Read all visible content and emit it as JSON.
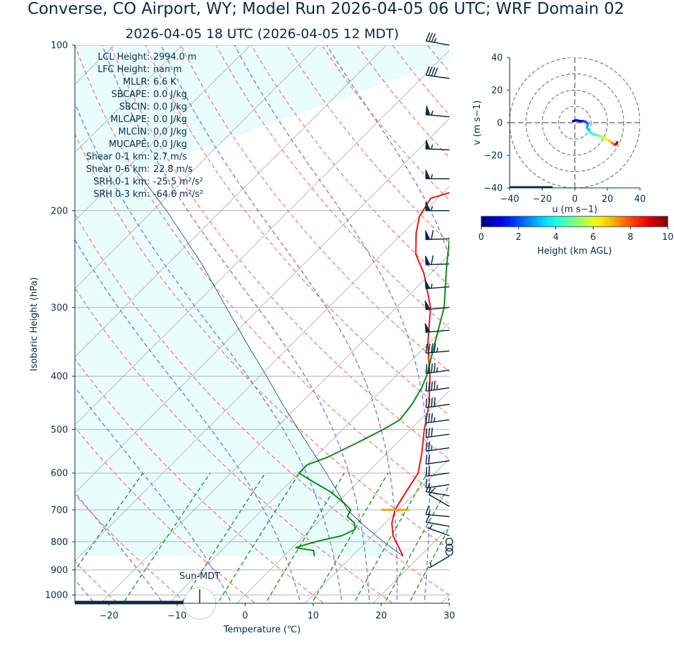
{
  "header": {
    "title": "Converse, CO Airport, WY; Model Run 2026-04-05 06 UTC; WRF Domain 02",
    "subtitle": "2026-04-05 18 UTC  (2026-04-05 12 MDT)"
  },
  "indices": [
    {
      "label": "LCL Height:",
      "value": "2994.0 m"
    },
    {
      "label": "LFC Height:",
      "value": "nan m"
    },
    {
      "label": "MLLR:",
      "value": "6.6 K"
    },
    {
      "label": "SBCAPE:",
      "value": "0.0 J/kg"
    },
    {
      "label": "SBCIN:",
      "value": "0.0 J/kg"
    },
    {
      "label": "MLCAPE:",
      "value": "0.0 J/kg"
    },
    {
      "label": "MLCIN:",
      "value": "0.0 J/kg"
    },
    {
      "label": "MUCAPE:",
      "value": "0.0 J/kg"
    },
    {
      "label": "Shear 0-1 km:",
      "value": "2.7 m/s"
    },
    {
      "label": "Shear 0-6 km:",
      "value": "22.8 m/s"
    },
    {
      "label": "SRH 0-1 km:",
      "value": "-25.5 m²/s²"
    },
    {
      "label": "SRH 0-3 km:",
      "value": "-64.6 m²/s²"
    }
  ],
  "sun_label": "Sun-MDT",
  "colors": {
    "text": "#0b2a4a",
    "temperature": "#e8140c",
    "dewpoint": "#0a8a0a",
    "parcel": "#1b3a5c",
    "cape_fill": "#e9fdfd",
    "lcl_marker": "#f4a10f"
  },
  "chart_data": [
    {
      "type": "line",
      "kind": "skew-t",
      "xlabel": "Temperature (℃)",
      "ylabel": "Isobaric Height (hPa)",
      "xlim": [
        -25,
        30
      ],
      "ylim": [
        1035,
        100
      ],
      "log_y": true,
      "grid": true,
      "x_ticks": [
        -20,
        -10,
        0,
        10,
        20,
        30
      ],
      "x_tick_labels": [
        "−20",
        "−10",
        "0",
        "10",
        "20",
        "30"
      ],
      "y_ticks": [
        100,
        200,
        300,
        400,
        500,
        600,
        700,
        800,
        900,
        1000
      ],
      "series": [
        {
          "role": "temperature",
          "p": [
            850,
            810,
            780,
            740,
            700,
            650,
            600,
            550,
            500,
            450,
            400,
            350,
            300,
            260,
            240,
            220,
            205,
            190,
            170,
            150,
            120,
            100
          ],
          "t": [
            17.5,
            15,
            13,
            11,
            9.5,
            8.5,
            7.5,
            5,
            2,
            -1,
            -5,
            -10,
            -15,
            -21,
            -25,
            -28,
            -30,
            -31,
            -22,
            -4,
            3,
            2
          ]
        },
        {
          "role": "dewpoint",
          "p": [
            850,
            830,
            820,
            800,
            780,
            760,
            740,
            720,
            700,
            680,
            650,
            620,
            600,
            580,
            560,
            530,
            500,
            480,
            450,
            420,
            400,
            350,
            300,
            250,
            220,
            200,
            180,
            160,
            140,
            120,
            100
          ],
          "t": [
            4.5,
            3.5,
            0.5,
            2.5,
            5.5,
            6.5,
            5.5,
            3.5,
            3,
            1,
            -2.5,
            -7,
            -10,
            -10,
            -8,
            -6,
            -4,
            -3,
            -3.5,
            -4.5,
            -5.5,
            -9,
            -13,
            -19,
            -23,
            -24,
            -23,
            -21,
            -16,
            -8,
            0
          ]
        },
        {
          "role": "parcel",
          "p": [
            850,
            800,
            750,
            700,
            650,
            600,
            550,
            500,
            450,
            400,
            350,
            300,
            250,
            200,
            170
          ],
          "t": [
            17.5,
            12.5,
            7.5,
            2.5,
            -1.5,
            -6,
            -11,
            -16.5,
            -22.5,
            -29,
            -36.5,
            -45,
            -55,
            -68,
            -78
          ]
        }
      ],
      "lcl": {
        "p": 700,
        "t": 9.5
      },
      "winds": [
        {
          "p": 100,
          "speed_kt": 35,
          "dir": 280
        },
        {
          "p": 115,
          "speed_kt": 40,
          "dir": 278
        },
        {
          "p": 135,
          "speed_kt": 55,
          "dir": 275
        },
        {
          "p": 155,
          "speed_kt": 55,
          "dir": 272
        },
        {
          "p": 175,
          "speed_kt": 55,
          "dir": 270
        },
        {
          "p": 200,
          "speed_kt": 55,
          "dir": 270
        },
        {
          "p": 225,
          "speed_kt": 60,
          "dir": 268
        },
        {
          "p": 250,
          "speed_kt": 60,
          "dir": 268
        },
        {
          "p": 275,
          "speed_kt": 55,
          "dir": 265
        },
        {
          "p": 300,
          "speed_kt": 50,
          "dir": 265
        },
        {
          "p": 330,
          "speed_kt": 50,
          "dir": 265
        },
        {
          "p": 360,
          "speed_kt": 45,
          "dir": 265
        },
        {
          "p": 390,
          "speed_kt": 45,
          "dir": 262
        },
        {
          "p": 420,
          "speed_kt": 45,
          "dir": 262
        },
        {
          "p": 450,
          "speed_kt": 40,
          "dir": 262
        },
        {
          "p": 480,
          "speed_kt": 35,
          "dir": 262
        },
        {
          "p": 510,
          "speed_kt": 30,
          "dir": 262
        },
        {
          "p": 540,
          "speed_kt": 25,
          "dir": 262
        },
        {
          "p": 570,
          "speed_kt": 20,
          "dir": 262
        },
        {
          "p": 600,
          "speed_kt": 20,
          "dir": 262
        },
        {
          "p": 630,
          "speed_kt": 15,
          "dir": 262
        },
        {
          "p": 660,
          "speed_kt": 15,
          "dir": 280
        },
        {
          "p": 690,
          "speed_kt": 10,
          "dir": 300
        },
        {
          "p": 720,
          "speed_kt": 15,
          "dir": 275
        },
        {
          "p": 750,
          "speed_kt": 10,
          "dir": 280
        },
        {
          "p": 780,
          "speed_kt": 5,
          "dir": 290
        },
        {
          "p": 800,
          "speed_kt": 0,
          "dir": 0
        },
        {
          "p": 820,
          "speed_kt": 0,
          "dir": 0
        },
        {
          "p": 835,
          "speed_kt": 0,
          "dir": 0
        },
        {
          "p": 850,
          "speed_kt": 5,
          "dir": 240
        }
      ]
    },
    {
      "type": "line",
      "kind": "hodograph",
      "xlabel": "u (m s−1)",
      "ylabel": "v (m s−1)",
      "xlim": [
        -40,
        40
      ],
      "ylim": [
        -40,
        40
      ],
      "x_ticks": [
        -40,
        -20,
        0,
        20,
        40
      ],
      "x_tick_labels": [
        "−40",
        "−20",
        "0",
        "20",
        "40"
      ],
      "y_ticks": [
        40,
        20,
        0,
        -20,
        -40
      ],
      "y_tick_labels": [
        "40",
        "20",
        "0",
        "−20",
        "−40"
      ],
      "rings": [
        10,
        20,
        30,
        40
      ],
      "colorbar": {
        "label": "Height (km AGL)",
        "min": 0,
        "max": 10,
        "ticks": [
          0,
          2,
          4,
          6,
          8,
          10
        ]
      },
      "series": [
        {
          "u": [
            -1,
            1,
            3,
            5,
            7,
            8,
            7.5,
            9,
            11,
            13,
            15,
            17,
            19,
            21,
            23,
            24.5,
            25.5,
            26
          ],
          "v": [
            1,
            1.5,
            1,
            1,
            0.5,
            -1,
            -3,
            -5.5,
            -7,
            -7.5,
            -8,
            -9,
            -10,
            -11,
            -12.5,
            -13.5,
            -13,
            -12
          ],
          "height_km": [
            0,
            0.5,
            1,
            1.5,
            2,
            2.5,
            3,
            3.5,
            4,
            4.5,
            5,
            5.5,
            6,
            6.5,
            7,
            8,
            9,
            10
          ]
        }
      ]
    }
  ]
}
